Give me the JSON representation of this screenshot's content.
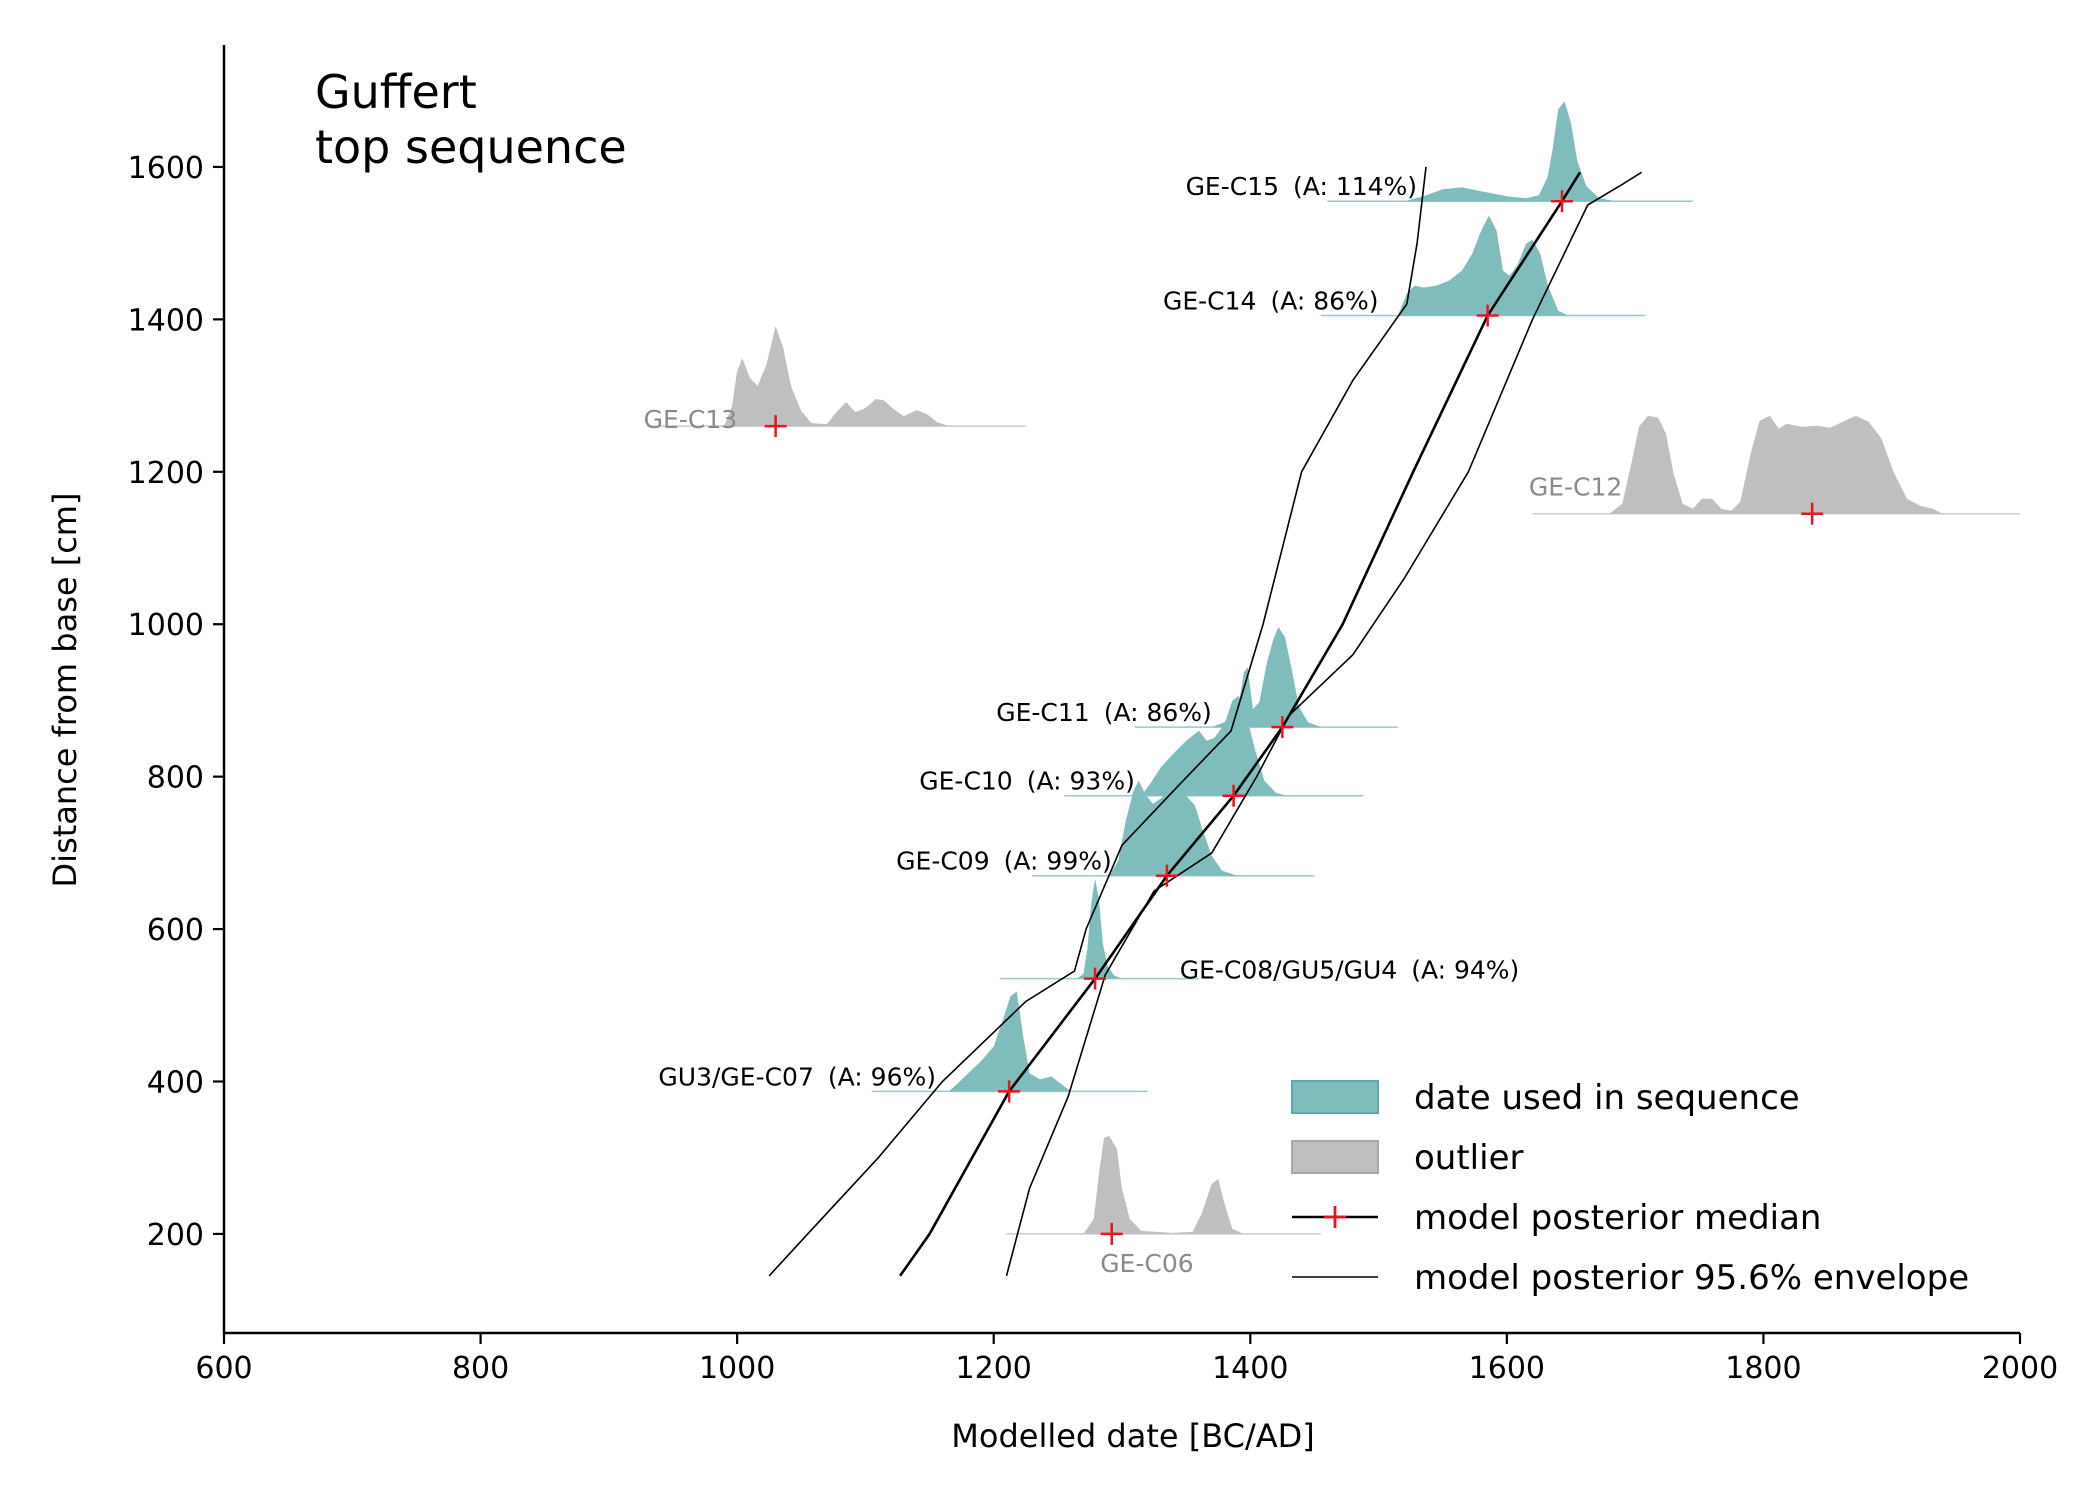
{
  "chart_data": {
    "type": "area",
    "title": [
      "Guffert",
      "top sequence"
    ],
    "xlabel": "Modelled date [BC/AD]",
    "ylabel": "Distance from base [cm]",
    "xlim": [
      600,
      2000
    ],
    "ylim": [
      70,
      1760
    ],
    "xticks": [
      600,
      800,
      1000,
      1200,
      1400,
      1600,
      1800,
      2000
    ],
    "yticks": [
      200,
      400,
      600,
      800,
      1000,
      1200,
      1400,
      1600
    ],
    "grid": false,
    "legend_position": "bottom-right",
    "colors": {
      "in_sequence": "#7fbdbd",
      "outlier": "#bfbfbf",
      "median": "#e8141e",
      "line": "#000000",
      "outlier_label": "#8a8a8a"
    },
    "samples": [
      {
        "label": "GE-C15",
        "agreement": "(A: 114%)",
        "depth": 1555,
        "median": 1643,
        "status": "sequence",
        "label_side": "left",
        "label_x": 1530,
        "pdf": [
          [
            1520,
            0
          ],
          [
            1535,
            0.05
          ],
          [
            1550,
            0.12
          ],
          [
            1565,
            0.14
          ],
          [
            1580,
            0.1
          ],
          [
            1600,
            0.05
          ],
          [
            1615,
            0.03
          ],
          [
            1625,
            0.06
          ],
          [
            1632,
            0.25
          ],
          [
            1636,
            0.55
          ],
          [
            1640,
            0.92
          ],
          [
            1645,
            1.0
          ],
          [
            1650,
            0.78
          ],
          [
            1655,
            0.4
          ],
          [
            1662,
            0.15
          ],
          [
            1672,
            0.03
          ],
          [
            1685,
            0
          ]
        ]
      },
      {
        "label": "GE-C14",
        "agreement": "(A: 86%)",
        "depth": 1405,
        "median": 1585,
        "status": "sequence",
        "label_side": "left",
        "label_x": 1500,
        "pdf": [
          [
            1515,
            0
          ],
          [
            1522,
            0.22
          ],
          [
            1528,
            0.3
          ],
          [
            1535,
            0.28
          ],
          [
            1545,
            0.3
          ],
          [
            1555,
            0.35
          ],
          [
            1565,
            0.45
          ],
          [
            1573,
            0.62
          ],
          [
            1580,
            0.85
          ],
          [
            1586,
            1.0
          ],
          [
            1592,
            0.85
          ],
          [
            1597,
            0.45
          ],
          [
            1602,
            0.4
          ],
          [
            1608,
            0.5
          ],
          [
            1615,
            0.72
          ],
          [
            1620,
            0.76
          ],
          [
            1626,
            0.62
          ],
          [
            1632,
            0.3
          ],
          [
            1640,
            0.05
          ],
          [
            1648,
            0
          ]
        ]
      },
      {
        "label": "GE-C13",
        "agreement": "",
        "depth": 1260,
        "median": 1030,
        "status": "outlier",
        "label_side": "left",
        "label_x": 1000,
        "pdf": [
          [
            990,
            0
          ],
          [
            996,
            0.2
          ],
          [
            1000,
            0.55
          ],
          [
            1004,
            0.68
          ],
          [
            1010,
            0.48
          ],
          [
            1016,
            0.4
          ],
          [
            1023,
            0.62
          ],
          [
            1030,
            1.0
          ],
          [
            1036,
            0.78
          ],
          [
            1042,
            0.4
          ],
          [
            1050,
            0.15
          ],
          [
            1058,
            0.03
          ],
          [
            1070,
            0.02
          ],
          [
            1078,
            0.15
          ],
          [
            1085,
            0.24
          ],
          [
            1092,
            0.14
          ],
          [
            1100,
            0.18
          ],
          [
            1108,
            0.27
          ],
          [
            1114,
            0.26
          ],
          [
            1122,
            0.17
          ],
          [
            1130,
            0.1
          ],
          [
            1140,
            0.16
          ],
          [
            1148,
            0.12
          ],
          [
            1156,
            0.04
          ],
          [
            1165,
            0
          ]
        ]
      },
      {
        "label": "GE-C12",
        "agreement": "",
        "depth": 1145,
        "median": 1838,
        "status": "outlier",
        "label_side": "left",
        "label_x": 1690,
        "pdf": [
          [
            1680,
            0
          ],
          [
            1690,
            0.1
          ],
          [
            1697,
            0.5
          ],
          [
            1703,
            0.87
          ],
          [
            1710,
            0.98
          ],
          [
            1718,
            0.96
          ],
          [
            1724,
            0.8
          ],
          [
            1730,
            0.4
          ],
          [
            1737,
            0.1
          ],
          [
            1745,
            0.05
          ],
          [
            1752,
            0.15
          ],
          [
            1760,
            0.15
          ],
          [
            1767,
            0.05
          ],
          [
            1775,
            0.03
          ],
          [
            1782,
            0.12
          ],
          [
            1790,
            0.6
          ],
          [
            1797,
            0.93
          ],
          [
            1805,
            0.98
          ],
          [
            1812,
            0.85
          ],
          [
            1818,
            0.9
          ],
          [
            1830,
            0.87
          ],
          [
            1842,
            0.88
          ],
          [
            1852,
            0.86
          ],
          [
            1862,
            0.92
          ],
          [
            1872,
            0.98
          ],
          [
            1882,
            0.92
          ],
          [
            1892,
            0.75
          ],
          [
            1902,
            0.4
          ],
          [
            1912,
            0.15
          ],
          [
            1922,
            0.08
          ],
          [
            1932,
            0.05
          ],
          [
            1940,
            0
          ]
        ]
      },
      {
        "label": "GE-C11",
        "agreement": "(A: 86%)",
        "depth": 865,
        "median": 1425,
        "status": "sequence",
        "label_side": "left",
        "label_x": 1370,
        "pdf": [
          [
            1370,
            0
          ],
          [
            1380,
            0.05
          ],
          [
            1390,
            0.15
          ],
          [
            1395,
            0.55
          ],
          [
            1398,
            0.6
          ],
          [
            1402,
            0.18
          ],
          [
            1407,
            0.25
          ],
          [
            1413,
            0.65
          ],
          [
            1418,
            0.88
          ],
          [
            1422,
            1.0
          ],
          [
            1427,
            0.9
          ],
          [
            1432,
            0.6
          ],
          [
            1438,
            0.2
          ],
          [
            1445,
            0.05
          ],
          [
            1455,
            0
          ]
        ]
      },
      {
        "label": "GE-C10",
        "agreement": "(A: 93%)",
        "depth": 775,
        "median": 1387,
        "status": "sequence",
        "label_side": "left",
        "label_x": 1310,
        "pdf": [
          [
            1315,
            0
          ],
          [
            1322,
            0.12
          ],
          [
            1330,
            0.28
          ],
          [
            1340,
            0.42
          ],
          [
            1350,
            0.55
          ],
          [
            1360,
            0.65
          ],
          [
            1366,
            0.55
          ],
          [
            1372,
            0.58
          ],
          [
            1380,
            0.72
          ],
          [
            1386,
            0.95
          ],
          [
            1391,
            1.0
          ],
          [
            1397,
            0.8
          ],
          [
            1404,
            0.45
          ],
          [
            1411,
            0.15
          ],
          [
            1420,
            0.03
          ],
          [
            1428,
            0
          ]
        ]
      },
      {
        "label": "GE-C09",
        "agreement": "(A: 99%)",
        "depth": 670,
        "median": 1335,
        "status": "sequence",
        "label_side": "left",
        "label_x": 1292,
        "pdf": [
          [
            1290,
            0
          ],
          [
            1297,
            0.15
          ],
          [
            1303,
            0.55
          ],
          [
            1309,
            0.85
          ],
          [
            1313,
            0.95
          ],
          [
            1318,
            0.82
          ],
          [
            1324,
            0.72
          ],
          [
            1331,
            0.78
          ],
          [
            1338,
            0.9
          ],
          [
            1344,
            0.88
          ],
          [
            1350,
            0.8
          ],
          [
            1357,
            0.7
          ],
          [
            1363,
            0.45
          ],
          [
            1370,
            0.2
          ],
          [
            1378,
            0.05
          ],
          [
            1390,
            0
          ]
        ]
      },
      {
        "label": "GE-C08/GU5/GU4",
        "agreement": "(A: 94%)",
        "depth": 535,
        "median": 1279,
        "status": "sequence",
        "label_side": "right",
        "label_x": 1345,
        "pdf": [
          [
            1265,
            0
          ],
          [
            1270,
            0.05
          ],
          [
            1273,
            0.3
          ],
          [
            1276,
            0.75
          ],
          [
            1279,
            1.0
          ],
          [
            1282,
            0.8
          ],
          [
            1285,
            0.35
          ],
          [
            1289,
            0.12
          ],
          [
            1294,
            0.03
          ],
          [
            1300,
            0
          ]
        ]
      },
      {
        "label": "GU3/GE-C07",
        "agreement": "(A: 96%)",
        "depth": 387,
        "median": 1212,
        "status": "sequence",
        "label_side": "left",
        "label_x": 1155,
        "pdf": [
          [
            1165,
            0
          ],
          [
            1172,
            0.08
          ],
          [
            1180,
            0.18
          ],
          [
            1190,
            0.3
          ],
          [
            1200,
            0.45
          ],
          [
            1208,
            0.75
          ],
          [
            1213,
            0.95
          ],
          [
            1218,
            1.0
          ],
          [
            1223,
            0.55
          ],
          [
            1228,
            0.18
          ],
          [
            1236,
            0.12
          ],
          [
            1245,
            0.15
          ],
          [
            1252,
            0.08
          ],
          [
            1260,
            0
          ]
        ]
      },
      {
        "label": "GE-C06",
        "agreement": "",
        "depth": 200,
        "median": 1292,
        "status": "outlier",
        "label_side": "below",
        "label_x": 1300,
        "pdf": [
          [
            1270,
            0
          ],
          [
            1278,
            0.15
          ],
          [
            1282,
            0.6
          ],
          [
            1286,
            0.96
          ],
          [
            1290,
            0.98
          ],
          [
            1296,
            0.85
          ],
          [
            1300,
            0.45
          ],
          [
            1306,
            0.15
          ],
          [
            1315,
            0.03
          ],
          [
            1340,
            0.01
          ],
          [
            1355,
            0.02
          ],
          [
            1362,
            0.2
          ],
          [
            1370,
            0.5
          ],
          [
            1375,
            0.55
          ],
          [
            1380,
            0.3
          ],
          [
            1386,
            0.05
          ],
          [
            1395,
            0
          ]
        ]
      }
    ],
    "legend": [
      {
        "type": "area",
        "color": "#7fbdbd",
        "label": "date used in sequence"
      },
      {
        "type": "area",
        "color": "#bfbfbf",
        "label": "outlier"
      },
      {
        "type": "median",
        "label": "model posterior median"
      },
      {
        "type": "line",
        "label": "model posterior 95.6% envelope"
      }
    ],
    "median_line": [
      [
        1127,
        145
      ],
      [
        1150,
        200
      ],
      [
        1212,
        387
      ],
      [
        1279,
        535
      ],
      [
        1335,
        670
      ],
      [
        1387,
        775
      ],
      [
        1425,
        865
      ],
      [
        1472,
        1000
      ],
      [
        1527,
        1200
      ],
      [
        1585,
        1405
      ],
      [
        1643,
        1555
      ],
      [
        1657,
        1593
      ]
    ],
    "envelope_lower": [
      [
        1025,
        145
      ],
      [
        1055,
        200
      ],
      [
        1110,
        300
      ],
      [
        1160,
        400
      ],
      [
        1225,
        505
      ],
      [
        1263,
        545
      ],
      [
        1272,
        600
      ],
      [
        1300,
        710
      ],
      [
        1345,
        790
      ],
      [
        1385,
        860
      ],
      [
        1410,
        1000
      ],
      [
        1440,
        1200
      ],
      [
        1480,
        1320
      ],
      [
        1522,
        1420
      ],
      [
        1530,
        1500
      ],
      [
        1537,
        1600
      ]
    ],
    "envelope_upper": [
      [
        1210,
        145
      ],
      [
        1228,
        260
      ],
      [
        1258,
        380
      ],
      [
        1287,
        540
      ],
      [
        1325,
        650
      ],
      [
        1370,
        700
      ],
      [
        1405,
        800
      ],
      [
        1430,
        880
      ],
      [
        1480,
        960
      ],
      [
        1520,
        1060
      ],
      [
        1570,
        1200
      ],
      [
        1620,
        1400
      ],
      [
        1663,
        1550
      ],
      [
        1688,
        1575
      ],
      [
        1705,
        1593
      ]
    ]
  }
}
